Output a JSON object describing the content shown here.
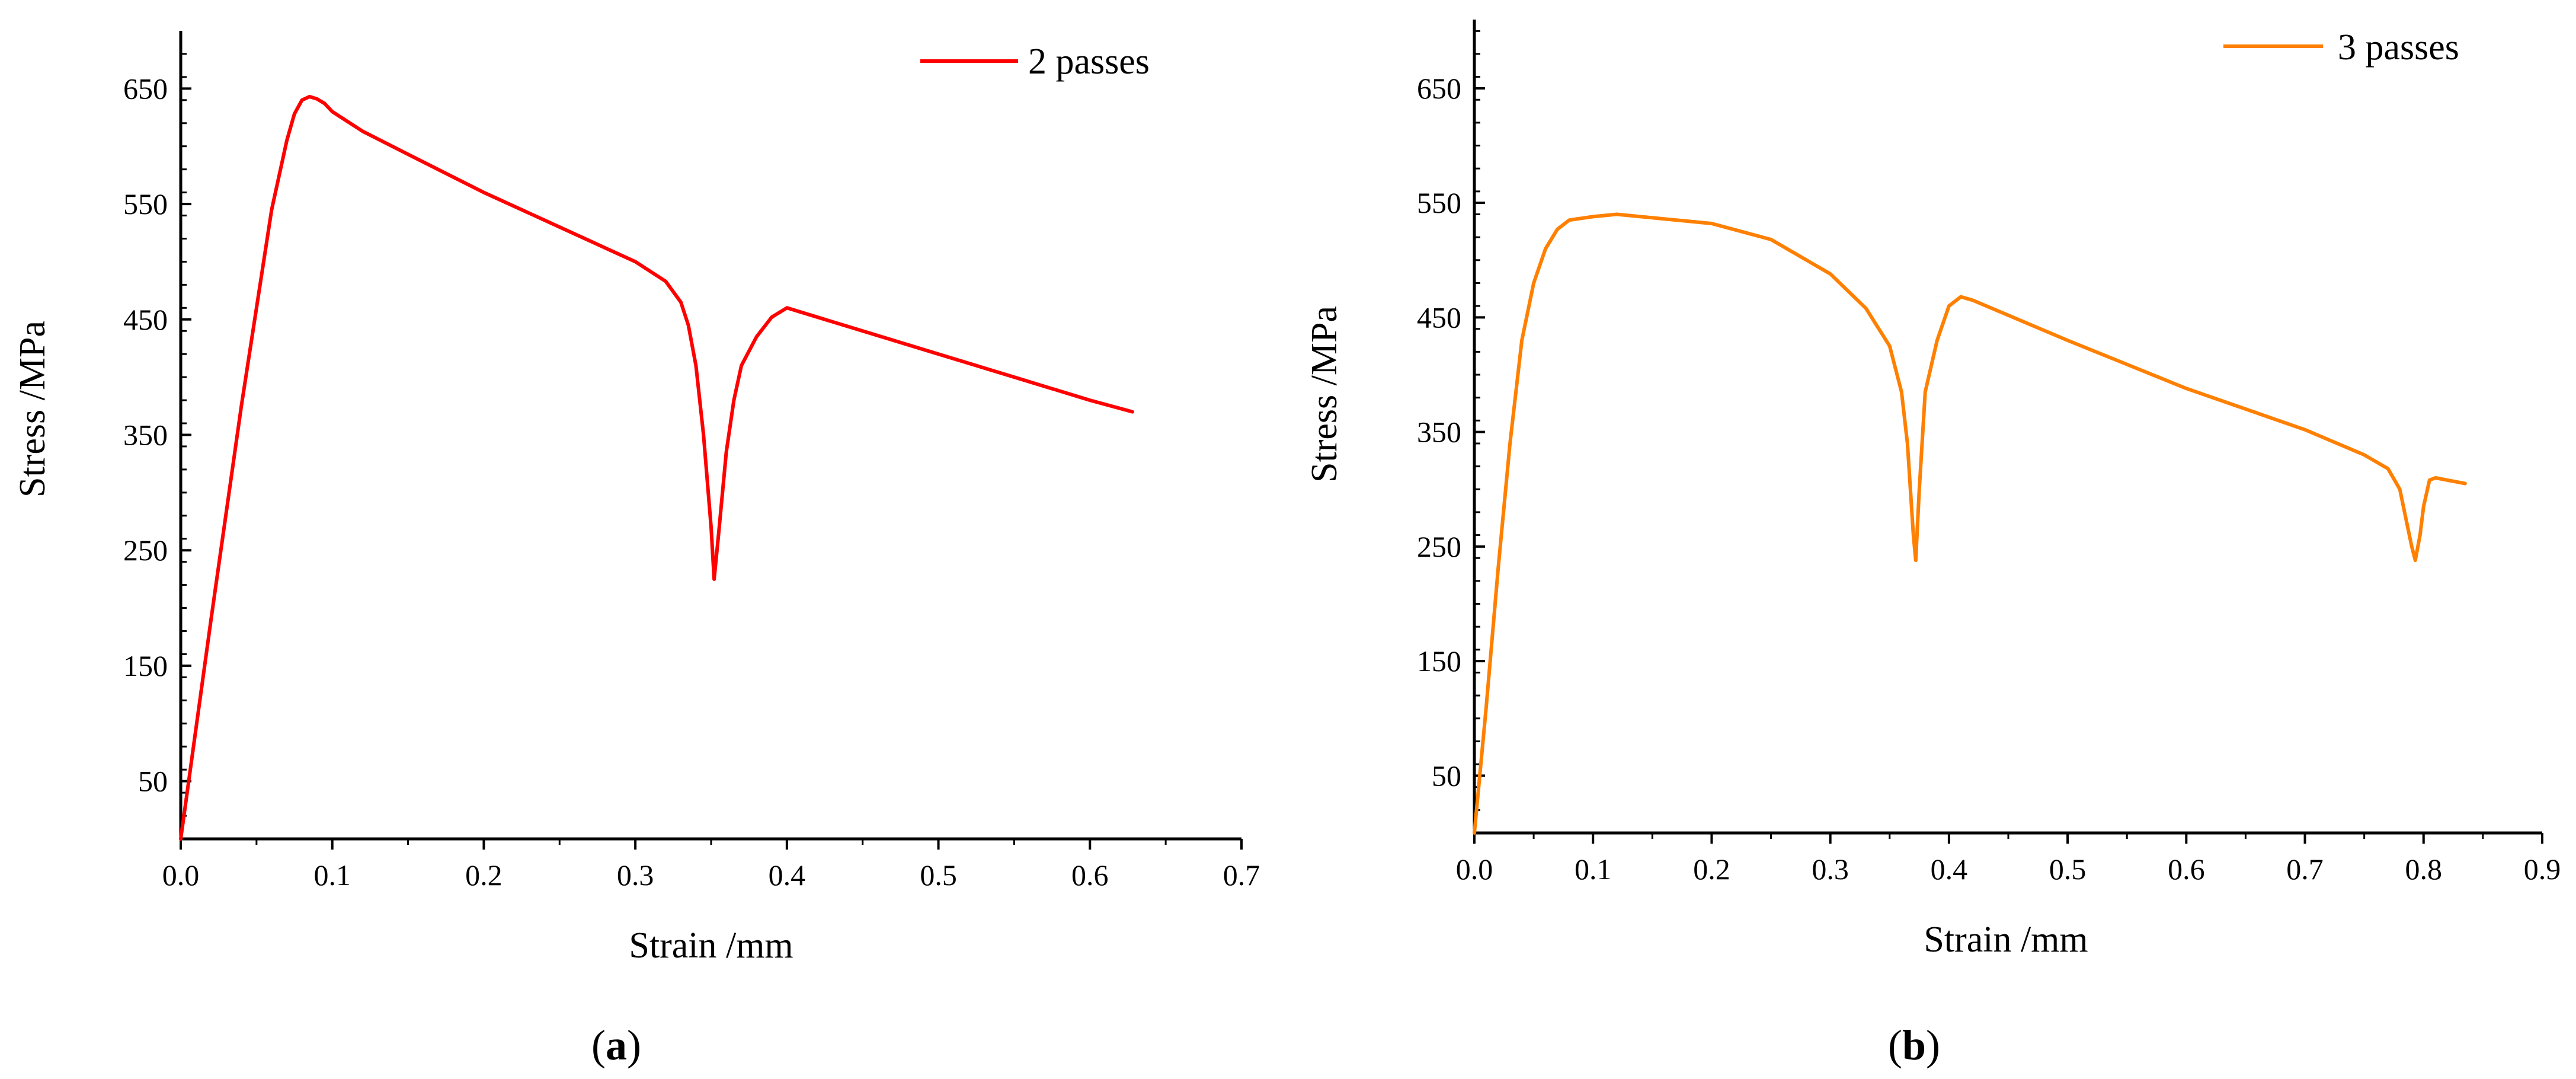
{
  "chart_data": [
    {
      "type": "line",
      "panel": {
        "open": "(",
        "letter": "a",
        "close": ")"
      },
      "xlabel": "Strain /mm",
      "ylabel": "Stress /MPa",
      "xlim": [
        0,
        0.7
      ],
      "ylim": [
        0,
        700
      ],
      "xticks": [
        0.0,
        0.1,
        0.2,
        0.3,
        0.4,
        0.5,
        0.6,
        0.7
      ],
      "xtick_labels": [
        "0.0",
        "0.1",
        "0.2",
        "0.3",
        "0.4",
        "0.5",
        "0.6",
        "0.7"
      ],
      "yticks": [
        50,
        150,
        250,
        350,
        450,
        550,
        650
      ],
      "ytick_labels": [
        "50",
        "150",
        "250",
        "350",
        "450",
        "550",
        "650"
      ],
      "grid": false,
      "legend_position": "top-right",
      "series": [
        {
          "name": "2 passes",
          "color": "#ff0000",
          "x": [
            0.0,
            0.02,
            0.04,
            0.06,
            0.065,
            0.07,
            0.075,
            0.08,
            0.085,
            0.09,
            0.095,
            0.1,
            0.12,
            0.15,
            0.2,
            0.25,
            0.3,
            0.32,
            0.33,
            0.335,
            0.34,
            0.345,
            0.35,
            0.352,
            0.355,
            0.36,
            0.365,
            0.37,
            0.38,
            0.39,
            0.4,
            0.45,
            0.5,
            0.55,
            0.6,
            0.628
          ],
          "y": [
            0,
            190,
            375,
            545,
            575,
            605,
            628,
            640,
            643,
            641,
            637,
            630,
            613,
            593,
            560,
            530,
            500,
            483,
            465,
            445,
            410,
            350,
            270,
            225,
            265,
            335,
            380,
            410,
            435,
            452,
            460,
            440,
            420,
            400,
            380,
            370
          ]
        }
      ]
    },
    {
      "type": "line",
      "panel": {
        "open": "(",
        "letter": "b",
        "close": ")"
      },
      "xlabel": "Strain /mm",
      "ylabel": "Stress /MPa",
      "xlim": [
        0,
        0.9
      ],
      "ylim": [
        0,
        710
      ],
      "xticks": [
        0.0,
        0.1,
        0.2,
        0.3,
        0.4,
        0.5,
        0.6,
        0.7,
        0.8,
        0.9
      ],
      "xtick_labels": [
        "0.0",
        "0.1",
        "0.2",
        "0.3",
        "0.4",
        "0.5",
        "0.6",
        "0.7",
        "0.8",
        "0.9"
      ],
      "yticks": [
        50,
        150,
        250,
        350,
        450,
        550,
        650
      ],
      "ytick_labels": [
        "50",
        "150",
        "250",
        "350",
        "450",
        "550",
        "650"
      ],
      "grid": false,
      "legend_position": "top-right",
      "series": [
        {
          "name": "3 passes",
          "color": "#ff8000",
          "x": [
            0.0,
            0.01,
            0.02,
            0.03,
            0.04,
            0.05,
            0.06,
            0.07,
            0.08,
            0.1,
            0.12,
            0.15,
            0.2,
            0.25,
            0.3,
            0.33,
            0.35,
            0.36,
            0.365,
            0.37,
            0.372,
            0.375,
            0.38,
            0.39,
            0.4,
            0.41,
            0.42,
            0.5,
            0.6,
            0.7,
            0.75,
            0.77,
            0.78,
            0.785,
            0.79,
            0.793,
            0.797,
            0.8,
            0.805,
            0.81,
            0.835
          ],
          "y": [
            0,
            110,
            230,
            340,
            430,
            480,
            510,
            527,
            535,
            538,
            540,
            537,
            532,
            518,
            488,
            458,
            425,
            385,
            340,
            260,
            238,
            300,
            385,
            430,
            460,
            468,
            465,
            430,
            388,
            352,
            330,
            318,
            300,
            275,
            250,
            238,
            260,
            285,
            308,
            310,
            305
          ]
        }
      ]
    }
  ]
}
